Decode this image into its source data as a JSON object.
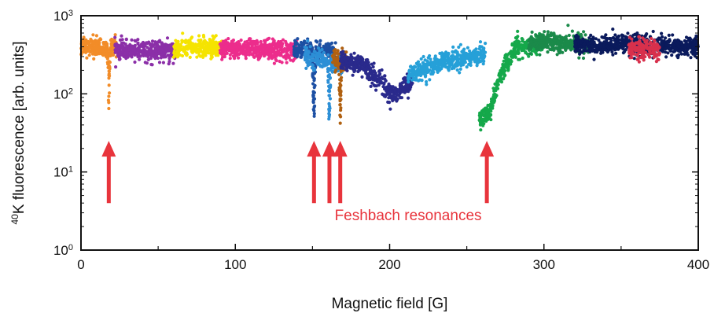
{
  "chart_data": {
    "type": "scatter",
    "xlabel": "Magnetic field [G]",
    "ylabel_sup": "40",
    "ylabel_text": "K fluorescence [arb. units]",
    "xlim": [
      0,
      400
    ],
    "ylim": [
      1,
      1000
    ],
    "yscale": "log",
    "grid": false,
    "legend": "none",
    "x_ticks": [
      0,
      100,
      200,
      300,
      400
    ],
    "y_ticks": [
      {
        "value": 1,
        "base": "10",
        "exp": "0"
      },
      {
        "value": 10,
        "base": "10",
        "exp": "1"
      },
      {
        "value": 100,
        "base": "10",
        "exp": "2"
      },
      {
        "value": 1000,
        "base": "10",
        "exp": "3"
      }
    ],
    "annotation": {
      "text": "Feshbach resonances",
      "color": "#e8343c",
      "arrows_at_field": [
        18,
        151,
        161,
        168,
        263
      ],
      "arrow_from_value": 4,
      "arrow_to_value": 25,
      "text_at": {
        "x": 212,
        "y": 2.4
      }
    },
    "series": [
      {
        "color": "#f28c28",
        "x_range": [
          0,
          24
        ],
        "trend": [
          [
            0,
            400
          ],
          [
            24,
            380
          ]
        ],
        "dips": [
          {
            "x": 18,
            "width": 1.0,
            "depth": 0.8
          }
        ]
      },
      {
        "color": "#8b2fa8",
        "x_range": [
          22,
          62
        ],
        "trend": [
          [
            22,
            360
          ],
          [
            62,
            350
          ]
        ],
        "dips": []
      },
      {
        "color": "#f5e400",
        "x_range": [
          60,
          92
        ],
        "trend": [
          [
            60,
            380
          ],
          [
            92,
            400
          ]
        ],
        "dips": []
      },
      {
        "color": "#ec2d8c",
        "x_range": [
          90,
          140
        ],
        "trend": [
          [
            90,
            380
          ],
          [
            140,
            360
          ]
        ],
        "dips": []
      },
      {
        "color": "#1c4fa3",
        "x_range": [
          138,
          165
        ],
        "trend": [
          [
            138,
            370
          ],
          [
            165,
            340
          ]
        ],
        "dips": [
          {
            "x": 151,
            "width": 1.2,
            "depth": 0.8
          }
        ]
      },
      {
        "color": "#2c8fd6",
        "x_range": [
          145,
          170
        ],
        "trend": [
          [
            145,
            300
          ],
          [
            170,
            250
          ]
        ],
        "dips": [
          {
            "x": 161,
            "width": 1.2,
            "depth": 0.75
          }
        ]
      },
      {
        "color": "#b06010",
        "x_range": [
          163,
          172
        ],
        "trend": [
          [
            163,
            280
          ],
          [
            172,
            260
          ]
        ],
        "dips": [
          {
            "x": 168,
            "width": 1.0,
            "depth": 0.8
          }
        ]
      },
      {
        "color": "#2a2a8c",
        "x_range": [
          168,
          215
        ],
        "trend": [
          [
            168,
            280
          ],
          [
            185,
            220
          ],
          [
            195,
            130
          ],
          [
            202,
            95
          ],
          [
            215,
            140
          ]
        ],
        "dips": []
      },
      {
        "color": "#26a0d8",
        "x_range": [
          212,
          262
        ],
        "trend": [
          [
            212,
            170
          ],
          [
            235,
            260
          ],
          [
            262,
            330
          ]
        ],
        "dips": []
      },
      {
        "color": "#15a84a",
        "x_range": [
          258,
          300
        ],
        "trend": [
          [
            258,
            45
          ],
          [
            265,
            60
          ],
          [
            272,
            180
          ],
          [
            282,
            380
          ],
          [
            300,
            450
          ]
        ],
        "dips": []
      },
      {
        "color": "#1b8a4a",
        "x_range": [
          290,
          330
        ],
        "trend": [
          [
            290,
            450
          ],
          [
            330,
            440
          ]
        ],
        "dips": []
      },
      {
        "color": "#0a1a5c",
        "x_range": [
          320,
          400
        ],
        "trend": [
          [
            320,
            430
          ],
          [
            360,
            420
          ],
          [
            400,
            400
          ]
        ],
        "dips": []
      },
      {
        "color": "#d8304c",
        "x_range": [
          355,
          375
        ],
        "trend": [
          [
            355,
            380
          ],
          [
            375,
            370
          ]
        ],
        "dips": []
      }
    ]
  }
}
